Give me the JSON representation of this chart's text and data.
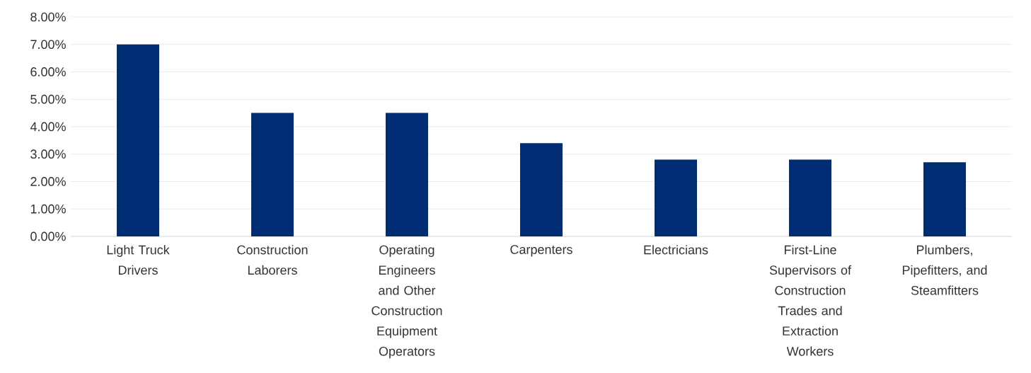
{
  "chart_data": {
    "type": "bar",
    "categories": [
      "Light Truck Drivers",
      "Construction Laborers",
      "Operating Engineers and Other Construction Equipment Operators",
      "Carpenters",
      "Electricians",
      "First-Line Supervisors of Construction Trades and Extraction Workers",
      "Plumbers, Pipefitters, and Steamfitters"
    ],
    "values": [
      7.0,
      4.5,
      4.5,
      3.4,
      2.8,
      2.8,
      2.7
    ],
    "color": "#002c73",
    "ylim": [
      0,
      8
    ],
    "yticks": [
      {
        "value": 0,
        "label": "0.00%"
      },
      {
        "value": 1,
        "label": "1.00%"
      },
      {
        "value": 2,
        "label": "2.00%"
      },
      {
        "value": 3,
        "label": "3.00%"
      },
      {
        "value": 4,
        "label": "4.00%"
      },
      {
        "value": 5,
        "label": "5.00%"
      },
      {
        "value": 6,
        "label": "6.00%"
      },
      {
        "value": 7,
        "label": "7.00%"
      },
      {
        "value": 8,
        "label": "8.00%"
      }
    ],
    "grid": "y"
  }
}
